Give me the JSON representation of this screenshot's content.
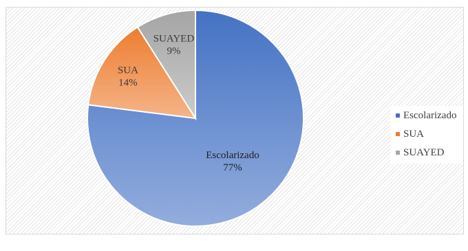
{
  "chart_data": {
    "type": "pie",
    "title": "",
    "categories": [
      "Escolarizado",
      "SUA",
      "SUAYED"
    ],
    "values": [
      77,
      14,
      9
    ],
    "labels": [
      "77%",
      "14%",
      "9%"
    ],
    "colors": [
      "#4472c4",
      "#ed7d31",
      "#a5a5a5"
    ],
    "legend_position": "right",
    "start_angle_deg": 0,
    "direction": "clockwise"
  }
}
